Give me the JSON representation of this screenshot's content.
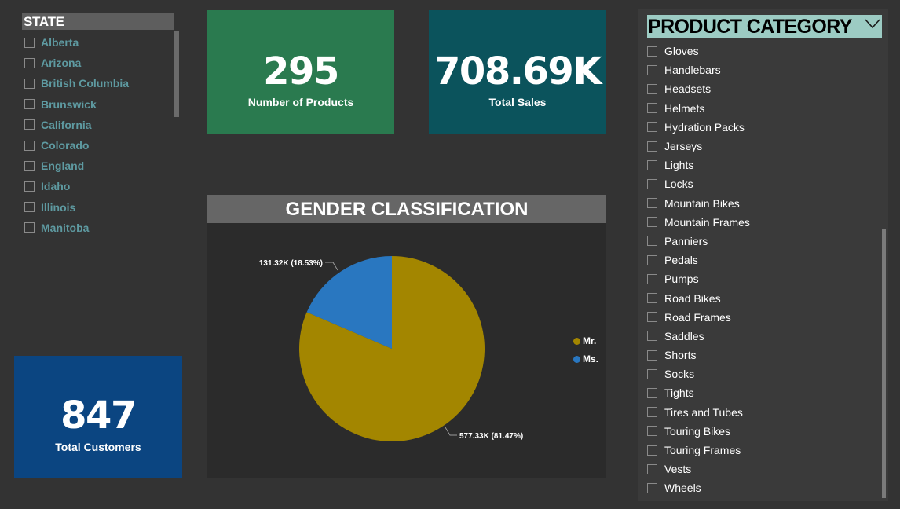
{
  "state_slicer": {
    "title": "STATE",
    "items": [
      "Alberta",
      "Arizona",
      "British Columbia",
      "Brunswick",
      "California",
      "Colorado",
      "England",
      "Idaho",
      "Illinois",
      "Manitoba"
    ]
  },
  "kpis": {
    "products": {
      "value": "295",
      "label": "Number of Products"
    },
    "sales": {
      "value": "708.69K",
      "label": "Total Sales"
    },
    "customers": {
      "value": "847",
      "label": "Total Customers"
    }
  },
  "gender_chart": {
    "title": "GENDER CLASSIFICATION"
  },
  "chart_data": {
    "type": "pie",
    "title": "GENDER CLASSIFICATION",
    "categories": [
      "Mr.",
      "Ms."
    ],
    "values": [
      577.33,
      131.32
    ],
    "percents": [
      81.47,
      18.53
    ],
    "data_labels": [
      "577.33K (81.47%)",
      "131.32K (18.53%)"
    ],
    "colors": [
      "#a38600",
      "#2977c0"
    ],
    "legend_position": "right"
  },
  "product_slicer": {
    "title": "PRODUCT CATEGORY",
    "dropdown_icon": "chevron-down-icon",
    "items": [
      "Gloves",
      "Handlebars",
      "Headsets",
      "Helmets",
      "Hydration Packs",
      "Jerseys",
      "Lights",
      "Locks",
      "Mountain Bikes",
      "Mountain Frames",
      "Panniers",
      "Pedals",
      "Pumps",
      "Road Bikes",
      "Road Frames",
      "Saddles",
      "Shorts",
      "Socks",
      "Tights",
      "Tires and Tubes",
      "Touring Bikes",
      "Touring Frames",
      "Vests",
      "Wheels"
    ]
  }
}
